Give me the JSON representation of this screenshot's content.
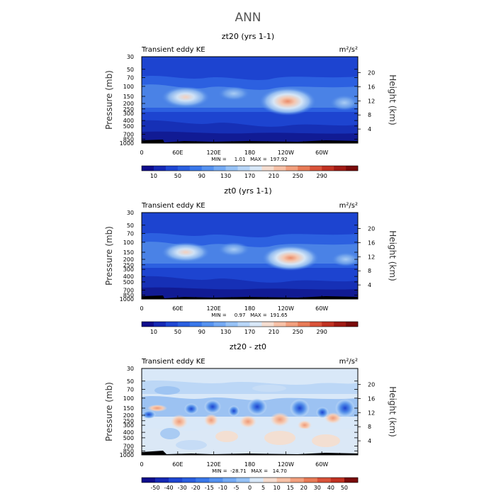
{
  "page": {
    "title": "ANN"
  },
  "chart_data": [
    {
      "type": "heatmap",
      "title": "zt20 (yrs 1-1)",
      "left_label": "Transient eddy KE",
      "units": "m²/s²",
      "ylabel": "Pressure (mb)",
      "ylabel_right": "Height (km)",
      "y_scale": "log",
      "y_ticks": [
        30,
        50,
        70,
        100,
        150,
        200,
        250,
        300,
        400,
        500,
        700,
        850,
        1000
      ],
      "y_right_ticks": [
        20,
        16,
        12,
        8,
        4
      ],
      "x_ticks": [
        "0",
        "60E",
        "120E",
        "180",
        "120W",
        "60W"
      ],
      "stats": "MIN =     1.01   MAX =  197.92",
      "min": 1.01,
      "max": 197.92,
      "colorbar_labels": [
        "10",
        "50",
        "90",
        "130",
        "170",
        "210",
        "250",
        "290"
      ],
      "colorbar_colors": [
        "#0f0c8c",
        "#1528b4",
        "#1e46d2",
        "#2a5fe0",
        "#3a78ea",
        "#5592f0",
        "#74aaf4",
        "#96c2f6",
        "#b8d6f8",
        "#d8e8f8",
        "#f5ddd0",
        "#f7c1a7",
        "#f2a07e",
        "#e87b57",
        "#d9533a",
        "#c13222",
        "#a01a14",
        "#7a0a0a"
      ],
      "extremes": {
        "max": 197.92,
        "location": "≈120W, 200 mb"
      }
    },
    {
      "type": "heatmap",
      "title": "zt0 (yrs 1-1)",
      "left_label": "Transient eddy KE",
      "units": "m²/s²",
      "ylabel": "Pressure (mb)",
      "ylabel_right": "Height (km)",
      "y_scale": "log",
      "y_ticks": [
        30,
        50,
        70,
        100,
        150,
        200,
        250,
        300,
        400,
        500,
        700,
        850,
        1000
      ],
      "y_right_ticks": [
        20,
        16,
        12,
        8,
        4
      ],
      "x_ticks": [
        "0",
        "60E",
        "120E",
        "180",
        "120W",
        "60W"
      ],
      "stats": "MIN =     0.97   MAX =  191.65",
      "min": 0.97,
      "max": 191.65,
      "colorbar_labels": [
        "10",
        "50",
        "90",
        "130",
        "170",
        "210",
        "250",
        "290"
      ],
      "colorbar_colors": [
        "#0f0c8c",
        "#1528b4",
        "#1e46d2",
        "#2a5fe0",
        "#3a78ea",
        "#5592f0",
        "#74aaf4",
        "#96c2f6",
        "#b8d6f8",
        "#d8e8f8",
        "#f5ddd0",
        "#f7c1a7",
        "#f2a07e",
        "#e87b57",
        "#d9533a",
        "#c13222",
        "#a01a14",
        "#7a0a0a"
      ],
      "extremes": {
        "max": 191.65,
        "location": "≈120W, 200 mb"
      }
    },
    {
      "type": "heatmap",
      "title": "zt20 - zt0",
      "left_label": "Transient eddy KE",
      "units": "m²/s²",
      "ylabel": "Pressure (mb)",
      "ylabel_right": "Height (km)",
      "y_scale": "log",
      "y_ticks": [
        30,
        50,
        70,
        100,
        150,
        200,
        250,
        300,
        400,
        500,
        700,
        850,
        1000
      ],
      "y_right_ticks": [
        20,
        16,
        12,
        8,
        4
      ],
      "x_ticks": [
        "0",
        "60E",
        "120E",
        "180",
        "120W",
        "60W"
      ],
      "stats": "MIN =  -28.71   MAX =   14.70",
      "min": -28.71,
      "max": 14.7,
      "colorbar_labels": [
        "-50",
        "-40",
        "-30",
        "-20",
        "-15",
        "-10",
        "-5",
        "0",
        "5",
        "10",
        "15",
        "20",
        "30",
        "40",
        "50"
      ],
      "colorbar_colors": [
        "#0f0c8c",
        "#1528b4",
        "#1e46d2",
        "#2a5fe0",
        "#3a78ea",
        "#5592f0",
        "#74aaf4",
        "#96c2f6",
        "#d8e8f8",
        "#f5ddd0",
        "#f7c1a7",
        "#f2a07e",
        "#e87b57",
        "#d9533a",
        "#c13222",
        "#7a0a0a"
      ]
    }
  ]
}
